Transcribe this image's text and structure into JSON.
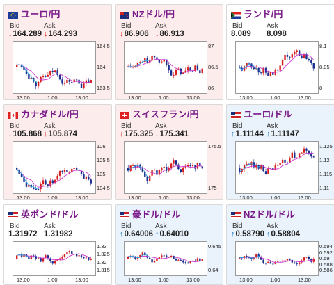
{
  "cards": [
    {
      "id": "eur-jpy",
      "title": "ユーロ/円",
      "flag": "eu",
      "bg": "red",
      "bid_label": "Bid",
      "ask_label": "Ask",
      "trend": "down",
      "bid": "164.289",
      "ask": "164.293",
      "yticks": [
        "164.5",
        "164",
        "163.5"
      ],
      "xticks": [
        "13:00",
        "1:00",
        "13:00"
      ]
    },
    {
      "id": "nzd-jpy",
      "title": "NZドル/円",
      "flag": "nz",
      "bg": "red",
      "bid_label": "Bid",
      "ask_label": "Ask",
      "trend": "down",
      "bid": "86.906",
      "ask": "86.913",
      "yticks": [
        "87",
        "86.5",
        "86"
      ],
      "xticks": [
        "13:00",
        "1:00",
        "13:00"
      ]
    },
    {
      "id": "zar-jpy",
      "title": "ランド/円",
      "flag": "za",
      "bg": "white",
      "bid_label": "Bid",
      "ask_label": "Ask",
      "trend": "none",
      "bid": "8.089",
      "ask": "8.098",
      "yticks": [
        "8.1",
        "8.05",
        "8"
      ],
      "xticks": [
        "13:00",
        "1:00",
        "13:00"
      ]
    },
    {
      "id": "cad-jpy",
      "title": "カナダドル/円",
      "flag": "ca",
      "bg": "red",
      "bid_label": "Bid",
      "ask_label": "Ask",
      "trend": "down",
      "bid": "105.868",
      "ask": "105.874",
      "yticks": [
        "106",
        "105.5",
        "105",
        "104.5"
      ],
      "xticks": [
        "13:00",
        "1:00",
        "13:00"
      ]
    },
    {
      "id": "chf-jpy",
      "title": "スイスフラン/円",
      "flag": "ch",
      "bg": "red",
      "bid_label": "Bid",
      "ask_label": "Ask",
      "trend": "down",
      "bid": "175.325",
      "ask": "175.341",
      "yticks": [
        "175.5",
        "175"
      ],
      "xticks": [
        "13:00",
        "1:00",
        "13:00"
      ]
    },
    {
      "id": "eur-usd",
      "title": "ユーロ/ドル",
      "flag": "us",
      "bg": "blue",
      "bid_label": "Bid",
      "ask_label": "Ask",
      "trend": "up",
      "bid": "1.11144",
      "ask": "1.11147",
      "yticks": [
        "1.125",
        "1.12",
        "1.115",
        "1.11"
      ],
      "xticks": [
        "13:00",
        "1:00",
        "13:00"
      ]
    },
    {
      "id": "gbp-usd",
      "title": "英ポンド/ドル",
      "flag": "us",
      "bg": "white",
      "bid_label": "Bid",
      "ask_label": "Ask",
      "trend": "none",
      "bid": "1.31972",
      "ask": "1.31982",
      "yticks": [
        "1.33",
        "1.325",
        "1.32",
        "1.315"
      ],
      "xticks": [
        "13:00",
        "1:00",
        "13:00"
      ]
    },
    {
      "id": "aud-usd",
      "title": "豪ドル/ドル",
      "flag": "us",
      "bg": "blue",
      "bid_label": "Bid",
      "ask_label": "Ask",
      "trend": "up",
      "bid": "0.64006",
      "ask": "0.64010",
      "yticks": [
        "0.645",
        "0.64"
      ],
      "xticks": [
        "13:00",
        "1:00",
        "13:00"
      ]
    },
    {
      "id": "nzd-usd",
      "title": "NZドル/ドル",
      "flag": "us",
      "bg": "blue",
      "bid_label": "Bid",
      "ask_label": "Ask",
      "trend": "up",
      "bid": "0.58790",
      "ask": "0.58804",
      "yticks": [
        "0.594",
        "0.592",
        "0.59",
        "0.588",
        "0.586"
      ],
      "xticks": [
        "13:00",
        "1:00",
        "13:00"
      ]
    }
  ],
  "colors": {
    "down": "#dd2222",
    "up": "#1f7ac6",
    "title": "#7a1a8a",
    "candle_up": "#d61f1f",
    "candle_down": "#1c2f8f",
    "ma": "#cc33cc",
    "ma2": "#2fa6de"
  }
}
